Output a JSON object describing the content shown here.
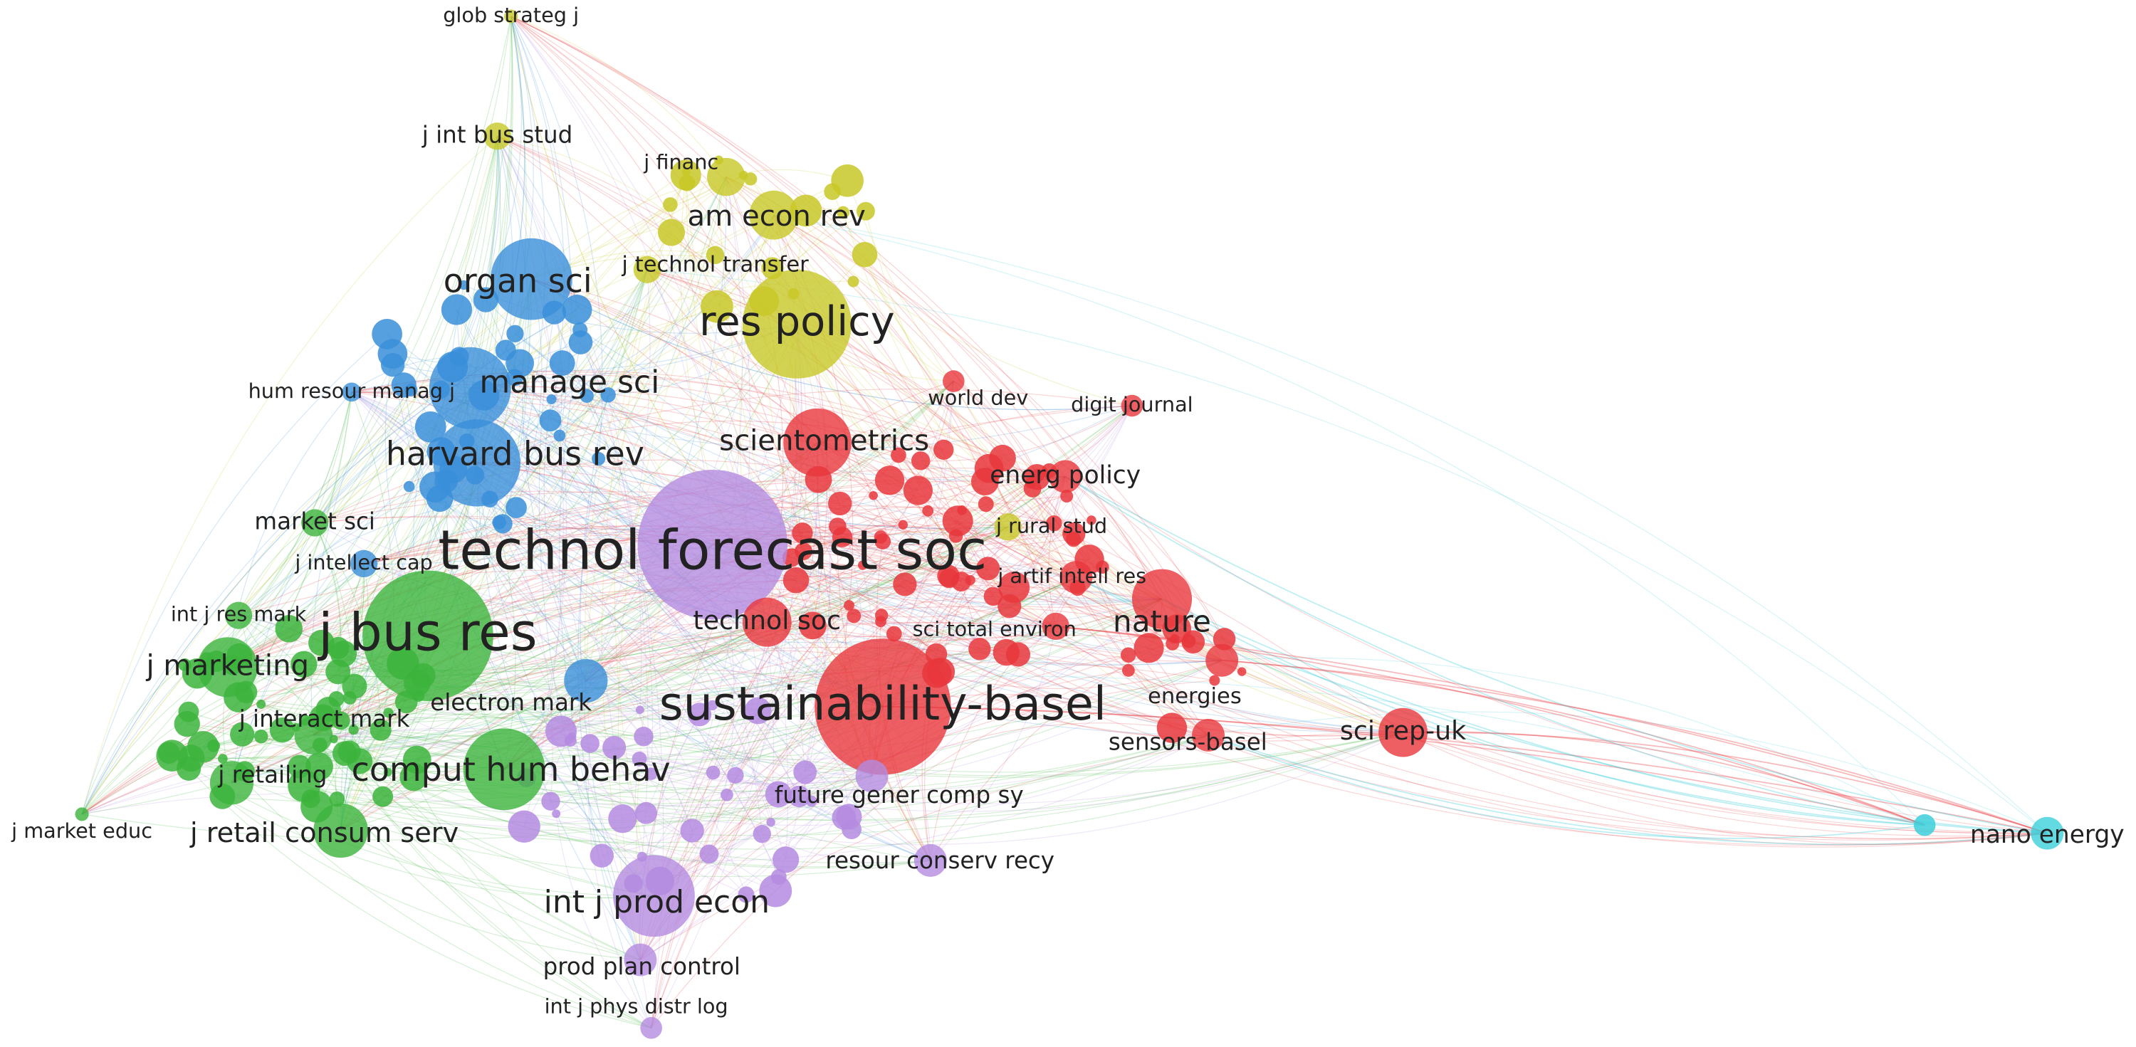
{
  "nodes": [
    {
      "label": "glob strateg j"
    },
    {
      "label": "j int bus stud"
    },
    {
      "label": "j financ"
    },
    {
      "label": "am econ rev"
    },
    {
      "label": "j technol transfer"
    },
    {
      "label": "organ sci"
    },
    {
      "label": "res policy"
    },
    {
      "label": "manage sci"
    },
    {
      "label": "hum resour manag j"
    },
    {
      "label": "world dev"
    },
    {
      "label": "digit journal"
    },
    {
      "label": "harvard bus rev"
    },
    {
      "label": "scientometrics"
    },
    {
      "label": "energ policy"
    },
    {
      "label": "market sci"
    },
    {
      "label": "j rural stud"
    },
    {
      "label": "technol forecast soc"
    },
    {
      "label": "j intellect cap"
    },
    {
      "label": "j artif intell res"
    },
    {
      "label": "int j res mark"
    },
    {
      "label": "j bus res"
    },
    {
      "label": "technol soc"
    },
    {
      "label": "nature"
    },
    {
      "label": "sci total environ"
    },
    {
      "label": "j marketing"
    },
    {
      "label": "energies"
    },
    {
      "label": "electron mark"
    },
    {
      "label": "sustainability-basel"
    },
    {
      "label": "j interact mark"
    },
    {
      "label": "sensors-basel"
    },
    {
      "label": "sci rep-uk"
    },
    {
      "label": "j retailing"
    },
    {
      "label": "comput hum behav"
    },
    {
      "label": "future gener comp sy"
    },
    {
      "label": "j market educ"
    },
    {
      "label": "j retail consum serv"
    },
    {
      "label": "nano energy"
    },
    {
      "label": "resour conserv recy"
    },
    {
      "label": "int j prod econ"
    },
    {
      "label": "prod plan control"
    },
    {
      "label": "int j phys distr log"
    }
  ]
}
